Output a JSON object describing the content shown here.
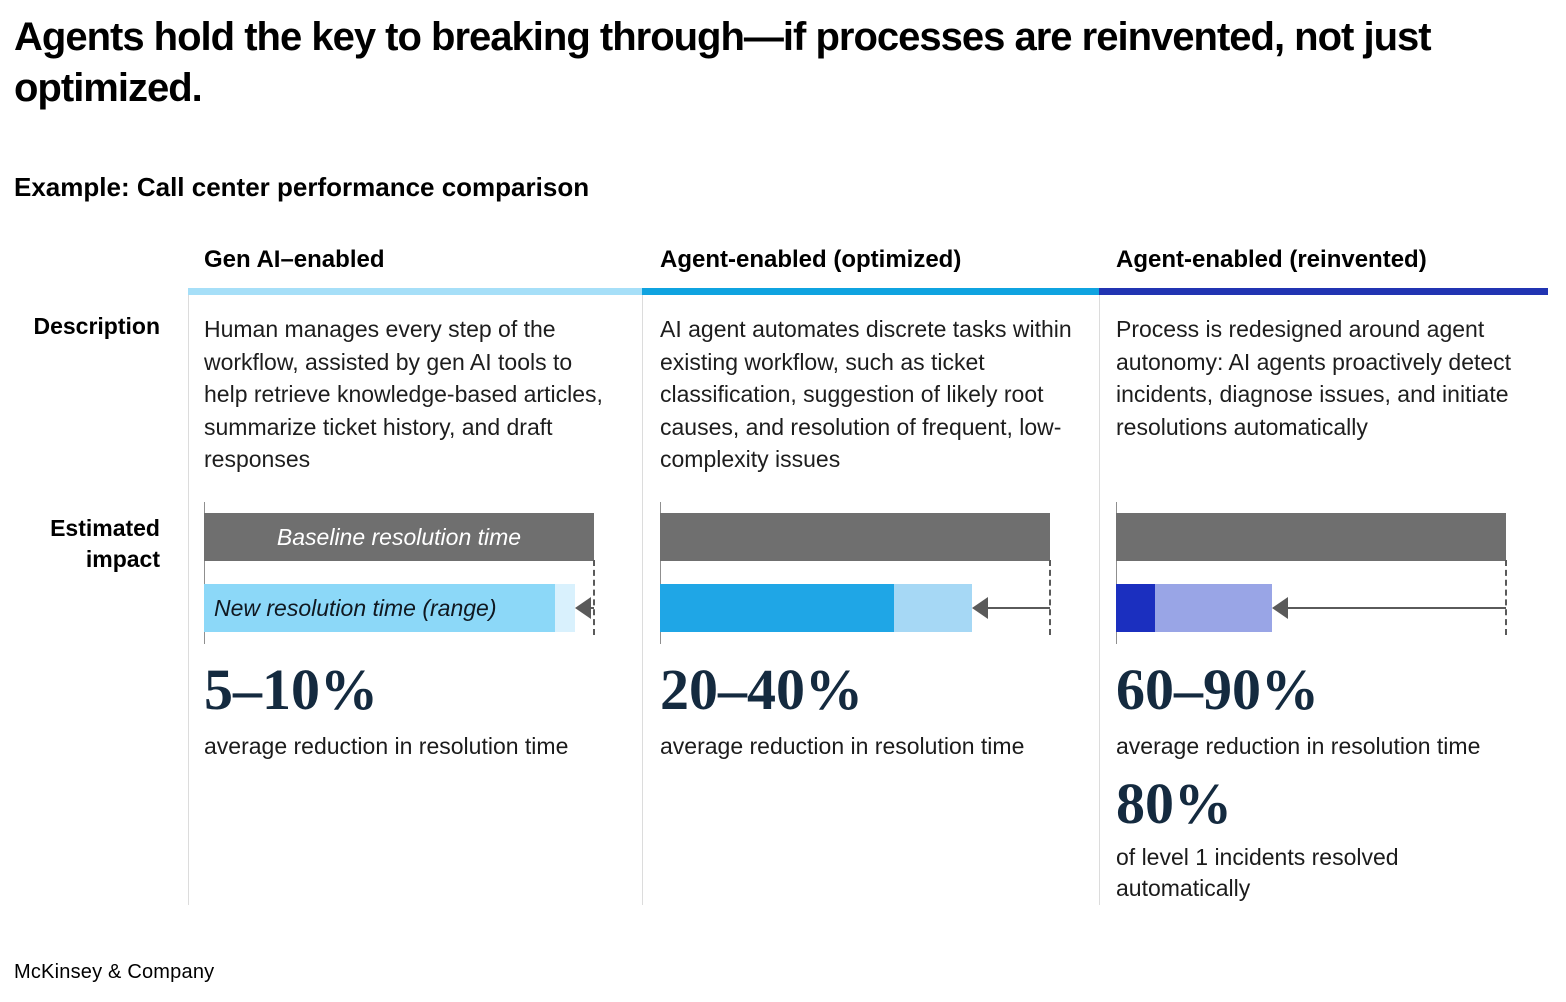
{
  "page": {
    "title": "Agents hold the key to breaking through—if processes are reinvented, not just optimized.",
    "subtitle": "Example: Call center performance comparison",
    "footer": "McKinsey & Company"
  },
  "row_labels": {
    "description": "Description",
    "impact": "Estimated impact"
  },
  "columns": [
    {
      "header": "Gen AI–enabled",
      "accent": "#a6dff8",
      "description": "Human manages every step of the workflow, assisted by gen AI tools to help retrieve knowledge-based articles, summarize ticket history, and draft responses",
      "stat": {
        "value": "5–10%",
        "caption": "average reduction in resolution time"
      }
    },
    {
      "header": "Agent-enabled (optimized)",
      "accent": "#0fa3e0",
      "description": "AI agent automates discrete tasks within existing workflow, such as ticket classification, suggestion of likely root causes, and resolution of frequent, low-complexity issues",
      "stat": {
        "value": "20–40%",
        "caption": "average reduction in resolution time"
      }
    },
    {
      "header": "Agent-enabled (reinvented)",
      "accent": "#2134b2",
      "description": "Process is redesigned around agent autonomy: AI agents proactively detect incidents, diagnose issues, and initiate resolutions automatically",
      "stat": {
        "value": "60–90%",
        "caption": "average reduction in resolution time"
      },
      "stat2": {
        "value": "80%",
        "caption": "of level 1 incidents resolved automatically"
      }
    }
  ],
  "chart_data": {
    "type": "bar",
    "title": "Estimated impact",
    "unit": "% of baseline resolution time",
    "axis_range": [
      0,
      100
    ],
    "baseline_label": "Baseline resolution time",
    "new_label": "New resolution time (range)",
    "baseline_color": "#6f6f6f",
    "arrow_color": "#5a5a5a",
    "columns": [
      {
        "name": "Gen AI–enabled",
        "baseline": 100,
        "new_time_min": 90,
        "new_time_max": 95,
        "reduction_label": "5–10%",
        "color_solid": "#8cd8f8",
        "color_light": "#d9f1fd"
      },
      {
        "name": "Agent-enabled (optimized)",
        "baseline": 100,
        "new_time_min": 60,
        "new_time_max": 80,
        "reduction_label": "20–40%",
        "color_solid": "#1fa6e6",
        "color_light": "#a6d8f5"
      },
      {
        "name": "Agent-enabled (reinvented)",
        "baseline": 100,
        "new_time_min": 10,
        "new_time_max": 40,
        "reduction_label": "60–90%",
        "color_solid": "#1b2fbf",
        "color_light": "#99a5e6"
      }
    ]
  }
}
